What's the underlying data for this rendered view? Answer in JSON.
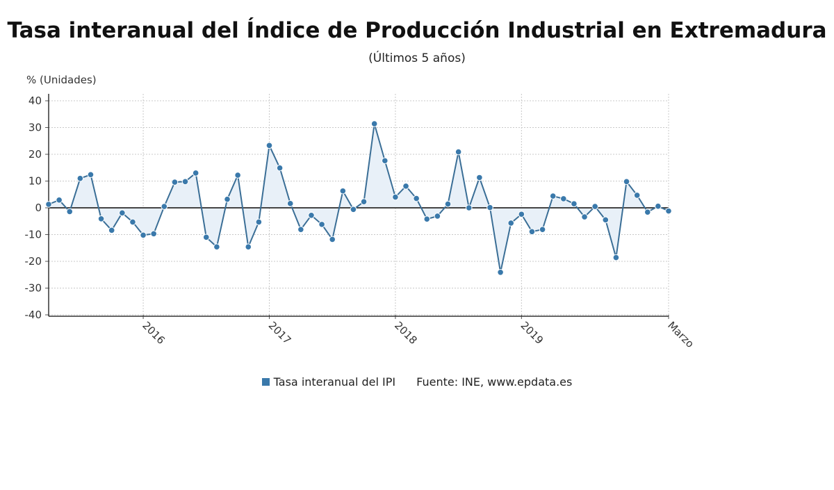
{
  "header": {
    "title": "Tasa interanual del Índice de Producción Industrial en Extremadura",
    "subtitle": "(Últimos 5 años)"
  },
  "legend": {
    "series_label": "Tasa interanual del IPI",
    "source": "Fuente: INE, www.epdata.es"
  },
  "colors": {
    "line": "#3a6e96",
    "marker": "#3a79ab",
    "fill": "#e8f0f8",
    "zero_line": "#444444",
    "grid": "#c8c8c8"
  },
  "chart_data": {
    "type": "line",
    "ylabel": "% (Unidades)",
    "ylim": [
      -40,
      40
    ],
    "yticks": [
      40,
      30,
      20,
      10,
      0,
      -10,
      -20,
      -30,
      -40
    ],
    "grid": true,
    "x_start": "2015-04",
    "x_end": "2020-03",
    "xticks": [
      {
        "label": "2016",
        "month": "2016-01"
      },
      {
        "label": "2017",
        "month": "2017-01"
      },
      {
        "label": "2018",
        "month": "2018-01"
      },
      {
        "label": "2019",
        "month": "2019-01"
      },
      {
        "label": "Marzo",
        "month": "2020-03"
      }
    ],
    "series": [
      {
        "name": "Tasa interanual del IPI",
        "values": [
          1.3,
          2.9,
          -1.4,
          11,
          12.4,
          -4.1,
          -8.4,
          -1.9,
          -5.3,
          -10.2,
          -9.7,
          0.5,
          9.6,
          9.8,
          13,
          -11,
          -14.6,
          3.2,
          12.2,
          -14.6,
          -5.3,
          23.3,
          14.9,
          1.6,
          -8.1,
          -2.8,
          -6.2,
          -11.8,
          6.3,
          -0.6,
          2.3,
          31.4,
          17.6,
          4,
          8.1,
          3.5,
          -4.2,
          -3.1,
          1.4,
          20.9,
          0,
          11.3,
          0.1,
          -24.1,
          -5.7,
          -2.4,
          -8.9,
          -8.1,
          4.4,
          3.4,
          1.5,
          -3.4,
          0.5,
          -4.5,
          -18.6,
          9.8,
          4.7,
          -1.6,
          0.6,
          -1.2
        ]
      }
    ]
  }
}
